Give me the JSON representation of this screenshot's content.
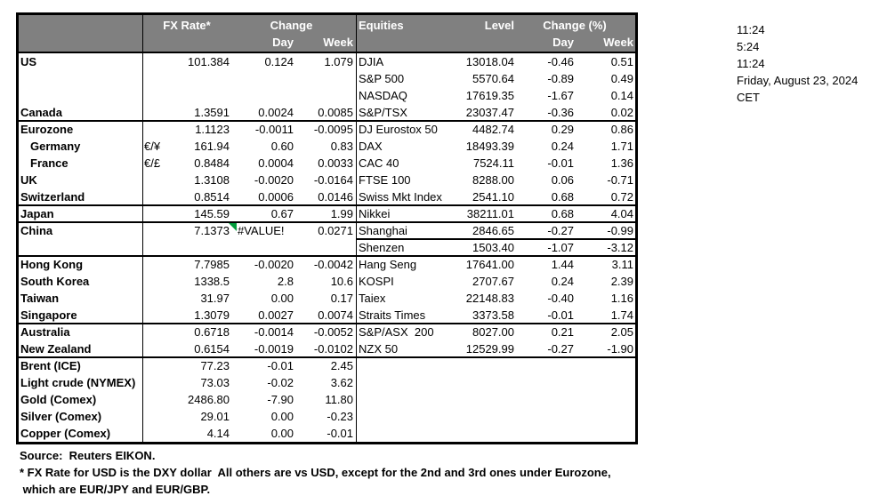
{
  "table_header": {
    "fx_rate": "FX Rate*",
    "change": "Change",
    "day": "Day",
    "week": "Week",
    "equities": "Equities",
    "level": "Level",
    "change_pct": "Change (%)"
  },
  "fx_rows": [
    {
      "label": "US",
      "fx": "101.384",
      "day": "0.124",
      "week": "1.079"
    },
    {},
    {},
    {
      "label": "Canada",
      "fx": "1.3591",
      "day": "0.0024",
      "week": "0.0085"
    },
    {
      "label": "Eurozone",
      "fx": "1.1123",
      "day": "-0.0011",
      "week": "-0.0095"
    },
    {
      "label": "Germany",
      "indent": true,
      "code": "€/¥",
      "fx": "161.94",
      "day": "0.60",
      "week": "0.83"
    },
    {
      "label": "France",
      "indent": true,
      "code": "€/£",
      "fx": "0.8484",
      "day": "0.0004",
      "week": "0.0033"
    },
    {
      "label": "UK",
      "fx": "1.3108",
      "day": "-0.0020",
      "week": "-0.0164"
    },
    {
      "label": "Switzerland",
      "fx": "0.8514",
      "day": "0.0006",
      "week": "0.0146"
    },
    {
      "label": "Japan",
      "fx": "145.59",
      "day": "0.67",
      "week": "1.99"
    },
    {
      "label": "China",
      "fx": "7.1373",
      "day": "#VALUE!",
      "error": true,
      "week": "0.0271"
    },
    {},
    {
      "label": "Hong Kong",
      "fx": "7.7985",
      "day": "-0.0020",
      "week": "-0.0042"
    },
    {
      "label": "South Korea",
      "fx": "1338.5",
      "day": "2.8",
      "week": "10.6"
    },
    {
      "label": "Taiwan",
      "fx": "31.97",
      "day": "0.00",
      "week": "0.17"
    },
    {
      "label": "Singapore",
      "fx": "1.3079",
      "day": "0.0027",
      "week": "0.0074"
    },
    {
      "label": "Australia",
      "fx": "0.6718",
      "day": "-0.0014",
      "week": "-0.0052"
    },
    {
      "label": "New Zealand",
      "fx": "0.6154",
      "day": "-0.0019",
      "week": "-0.0102"
    },
    {
      "label": "Brent (ICE)",
      "fx": "77.23",
      "day": "-0.01",
      "week": "2.45"
    },
    {
      "label": "Light crude (NYMEX)",
      "fx": "73.03",
      "day": "-0.02",
      "week": "3.62"
    },
    {
      "label": "Gold (Comex)",
      "fx": "2486.80",
      "day": "-7.90",
      "week": "11.80"
    },
    {
      "label": "Silver (Comex)",
      "fx": "29.01",
      "day": "0.00",
      "week": "-0.23"
    },
    {
      "label": "Copper (Comex)",
      "fx": "4.14",
      "day": "0.00",
      "week": "-0.01"
    }
  ],
  "equity_rows": [
    {
      "label": "DJIA",
      "level": "13018.04",
      "day": "-0.46",
      "week": "0.51"
    },
    {
      "label": "S&P 500",
      "level": "5570.64",
      "day": "-0.89",
      "week": "0.49"
    },
    {
      "label": "NASDAQ",
      "level": "17619.35",
      "day": "-1.67",
      "week": "0.14"
    },
    {
      "label": "S&P/TSX",
      "level": "23037.47",
      "day": "-0.36",
      "week": "0.02"
    },
    {
      "label": "DJ Eurostox 50",
      "level": "4482.74",
      "day": "0.29",
      "week": "0.86"
    },
    {
      "label": "DAX",
      "level": "18493.39",
      "day": "0.24",
      "week": "1.71"
    },
    {
      "label": "CAC 40",
      "level": "7524.11",
      "day": "-0.01",
      "week": "1.36"
    },
    {
      "label": "FTSE 100",
      "level": "8288.00",
      "day": "0.06",
      "week": "-0.71"
    },
    {
      "label": "Swiss Mkt Index",
      "level": "2541.10",
      "day": "0.68",
      "week": "0.72"
    },
    {
      "label": "Nikkei",
      "level": "38211.01",
      "day": "0.68",
      "week": "4.04"
    },
    {
      "label": "Shanghai",
      "level": "2846.65",
      "day": "-0.27",
      "week": "-0.99"
    },
    {
      "label": "Shenzen",
      "level": "1503.40",
      "day": "-1.07",
      "week": "-3.12"
    },
    {
      "label": "Hang Seng",
      "level": "17641.00",
      "day": "1.44",
      "week": "3.11"
    },
    {
      "label": "KOSPI",
      "level": "2707.67",
      "day": "0.24",
      "week": "2.39"
    },
    {
      "label": "Taiex",
      "level": "22148.83",
      "day": "-0.40",
      "week": "1.16"
    },
    {
      "label": "Straits Times",
      "level": "3373.58",
      "day": "-0.01",
      "week": "1.74"
    },
    {
      "label": "S&P/ASX  200",
      "level": "8027.00",
      "day": "0.21",
      "week": "2.05"
    },
    {
      "label": "NZX 50",
      "level": "12529.99",
      "day": "-0.27",
      "week": "-1.90"
    }
  ],
  "timestamps": [
    "11:24",
    "5:24",
    "11:24",
    "Friday, August 23, 2024",
    "CET"
  ],
  "footnotes": {
    "source": "Source:  Reuters EIKON.",
    "note1": "* FX Rate for USD is the DXY dollar  All others are vs USD, except for the 2nd and 3rd ones under Eurozone,",
    "note2": " which are EUR/JPY and EUR/GBP."
  },
  "colors": {
    "header_bg": "#808080",
    "header_text": "#FFFFFF",
    "border": "#000000",
    "error_indicator_green": "#009B3A"
  }
}
